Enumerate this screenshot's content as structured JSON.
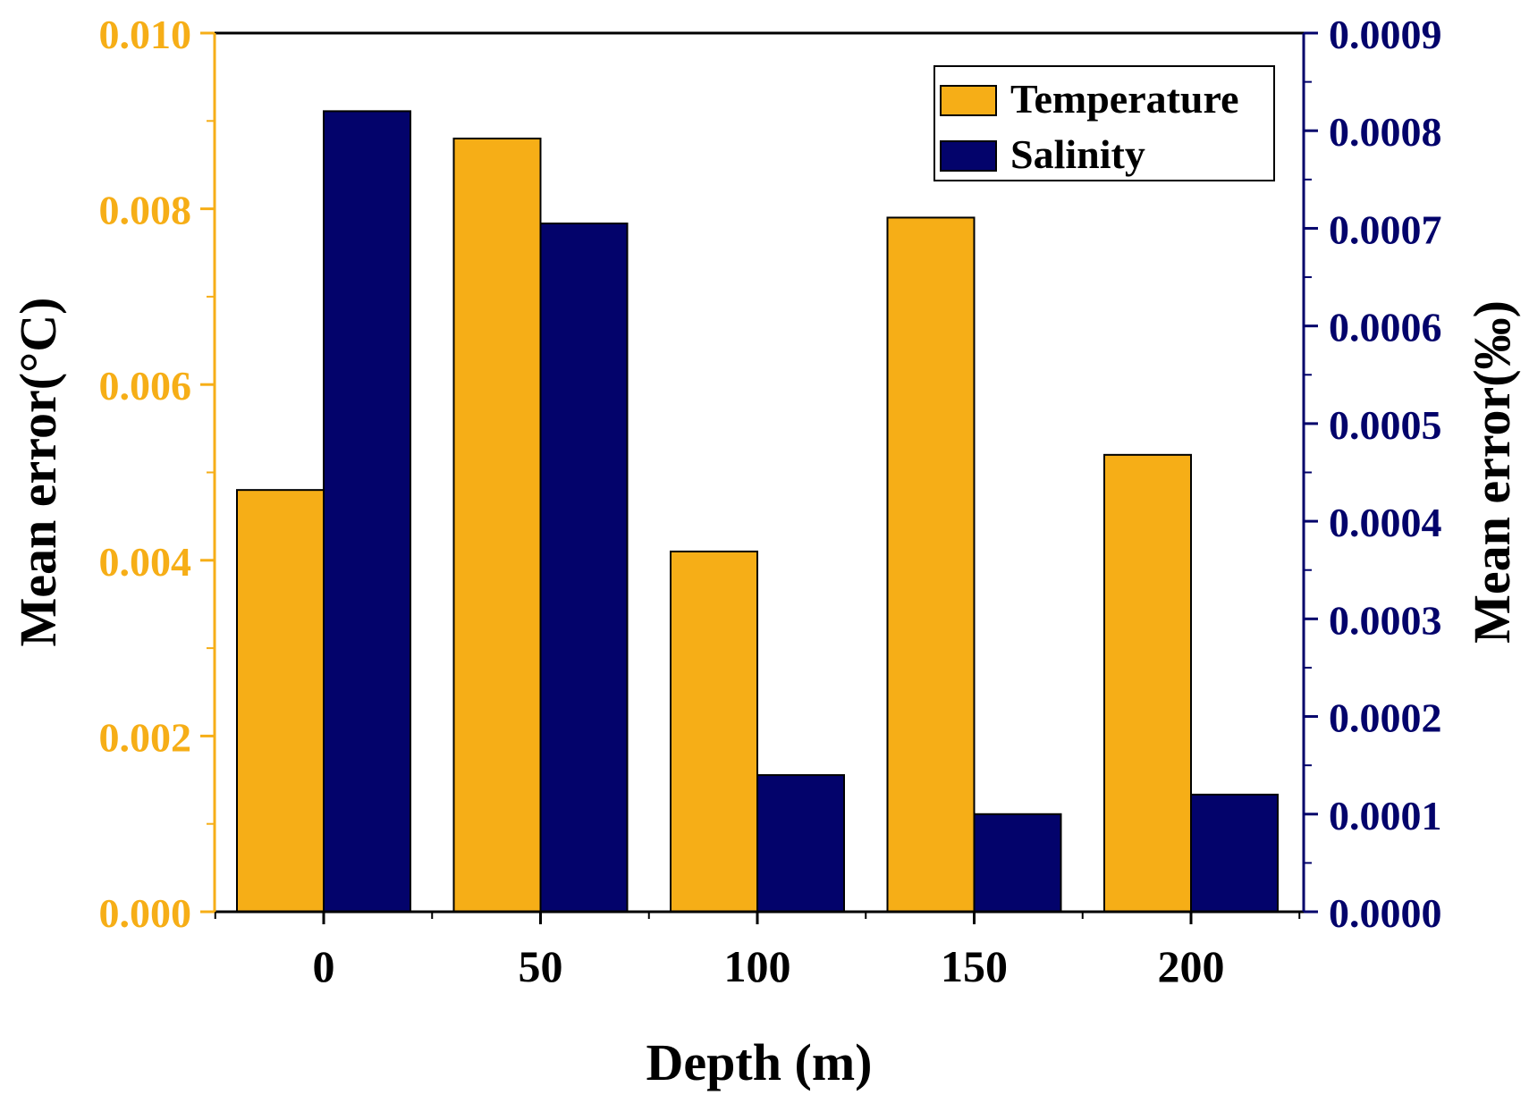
{
  "colors": {
    "temperature": "#F6AE17",
    "salinity": "#03036B",
    "left_axis": "#F6AE17",
    "right_axis": "#03036B",
    "frame": "#000000"
  },
  "chart_data": {
    "type": "bar",
    "categories": [
      "0",
      "50",
      "100",
      "150",
      "200"
    ],
    "series": [
      {
        "name": "Temperature",
        "axis": "left",
        "values": [
          0.0048,
          0.0088,
          0.0041,
          0.0079,
          0.0052
        ]
      },
      {
        "name": "Salinity",
        "axis": "right",
        "values": [
          0.00082,
          0.000705,
          0.00014,
          0.0001,
          0.00012
        ]
      }
    ],
    "xlabel": "Depth (m)",
    "ylabel_left": "Mean error(°C)",
    "ylabel_right": "Mean error(‰)",
    "ylim_left": [
      0,
      0.01
    ],
    "ylim_right": [
      0,
      0.0009
    ],
    "yticks_left": [
      "0.000",
      "0.002",
      "0.004",
      "0.006",
      "0.008",
      "0.010"
    ],
    "yticks_right": [
      "0.0000",
      "0.0001",
      "0.0002",
      "0.0003",
      "0.0004",
      "0.0005",
      "0.0006",
      "0.0007",
      "0.0008",
      "0.0009"
    ],
    "legend": {
      "position": "top-right",
      "entries": [
        "Temperature",
        "Salinity"
      ]
    },
    "grid": false
  }
}
